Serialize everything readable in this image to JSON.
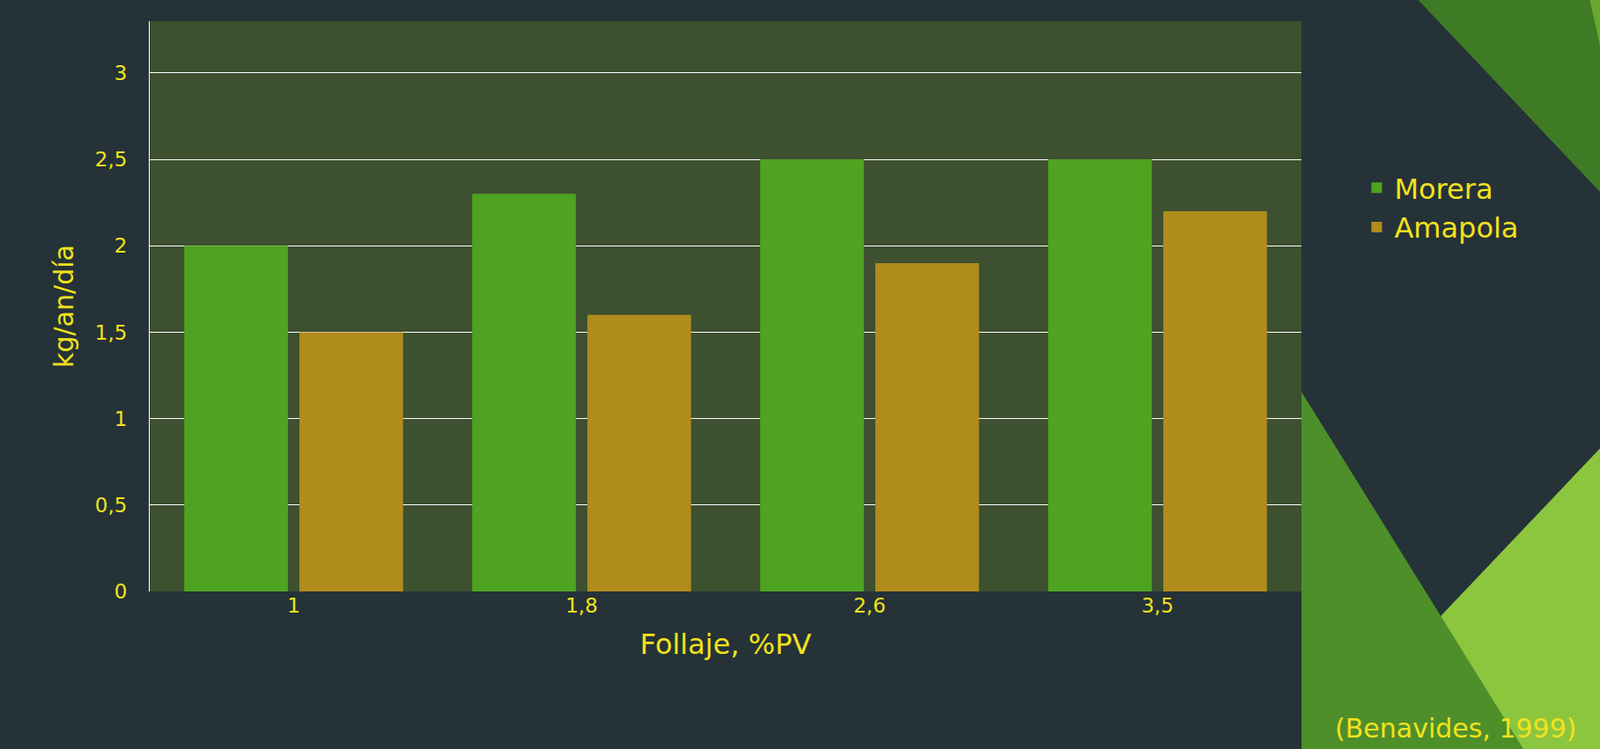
{
  "chart_data": {
    "type": "bar",
    "categories": [
      "1",
      "1,8",
      "2,6",
      "3,5"
    ],
    "series": [
      {
        "name": "Morera",
        "color": "#4ea321",
        "values": [
          2.0,
          2.3,
          2.5,
          2.5
        ]
      },
      {
        "name": "Amapola",
        "color": "#b08c1c",
        "values": [
          1.5,
          1.6,
          1.9,
          2.2
        ]
      }
    ],
    "x_label": "Follaje, %PV",
    "y_label": "kg/an/día",
    "ylim": [
      0,
      3.3
    ],
    "yticks": [
      0,
      {
        "value": 0.5,
        "label": "0,5"
      },
      1,
      {
        "value": 1.5,
        "label": "1,5"
      },
      2,
      {
        "value": 2.5,
        "label": "2,5"
      },
      3
    ],
    "grid": true,
    "legend": "right",
    "annotations": [
      "(Benavides, 1999)"
    ]
  }
}
